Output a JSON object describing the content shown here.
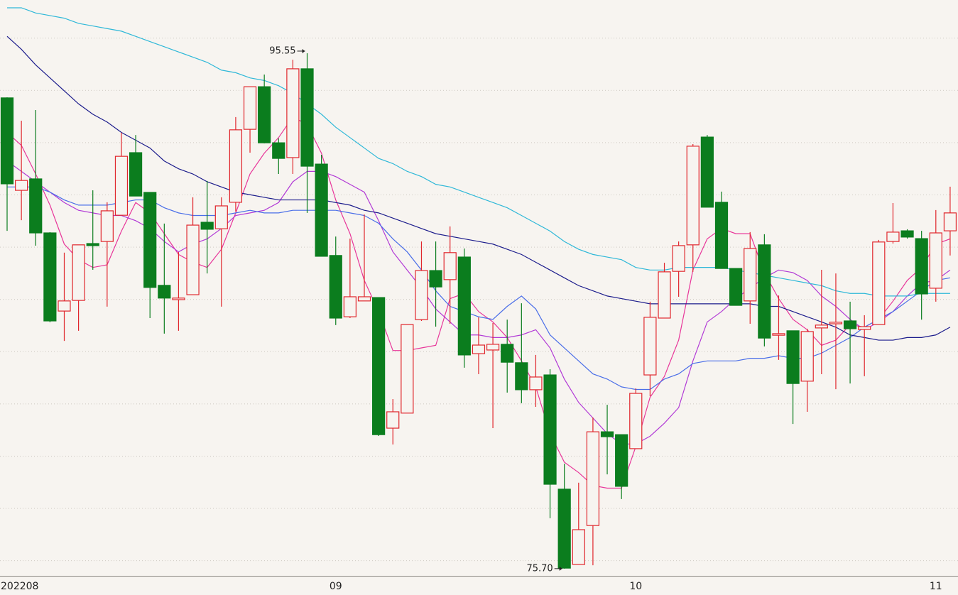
{
  "chart_data": {
    "type": "candlestick",
    "categories": [
      "202208",
      null,
      null,
      null,
      null,
      null,
      null,
      null,
      null,
      null,
      null,
      null,
      null,
      null,
      null,
      null,
      null,
      null,
      null,
      null,
      null,
      null,
      null,
      "09",
      null,
      null,
      null,
      null,
      null,
      null,
      null,
      null,
      null,
      null,
      null,
      null,
      null,
      null,
      null,
      null,
      null,
      null,
      null,
      null,
      "10",
      null,
      null,
      null,
      null,
      null,
      null,
      null,
      null,
      null,
      null,
      null,
      null,
      null,
      null,
      null,
      null,
      null,
      null,
      null,
      null,
      "11",
      null
    ],
    "open": [
      93.83,
      90.27,
      90.71,
      88.63,
      85.62,
      86.03,
      88.22,
      88.3,
      89.31,
      91.72,
      90.19,
      86.61,
      86.06,
      86.25,
      89.04,
      88.79,
      89.81,
      92.62,
      94.26,
      92.1,
      91.53,
      94.95,
      91.28,
      87.76,
      85.4,
      86.01,
      86.14,
      81.11,
      81.69,
      85.29,
      87.18,
      86.83,
      87.7,
      83.98,
      84.12,
      84.34,
      83.63,
      82.59,
      83.16,
      78.76,
      75.86,
      77.36,
      80.97,
      80.86,
      80.32,
      83.16,
      85.35,
      87.15,
      88.17,
      92.32,
      89.81,
      87.26,
      86.01,
      88.17,
      84.69,
      84.86,
      82.92,
      84.97,
      85.13,
      85.24,
      84.91,
      85.1,
      88.3,
      88.71,
      88.41,
      86.5,
      88.71
    ],
    "high": [
      93.85,
      92.95,
      93.36,
      88.66,
      87.87,
      88.17,
      90.27,
      89.81,
      92.49,
      92.4,
      90.19,
      88.99,
      87.89,
      90.0,
      90.63,
      90.0,
      93.09,
      94.26,
      94.73,
      92.27,
      95.3,
      95.55,
      91.64,
      88.49,
      88.41,
      89.34,
      86.14,
      82.23,
      85.1,
      88.3,
      88.3,
      88.88,
      88.03,
      85.38,
      85.16,
      85.29,
      85.92,
      83.93,
      83.38,
      79.74,
      79.01,
      81.52,
      82.01,
      80.86,
      82.64,
      85.98,
      87.48,
      88.3,
      92.05,
      92.4,
      90.22,
      87.26,
      88.66,
      88.58,
      86.22,
      84.86,
      84.94,
      87.21,
      87.07,
      85.98,
      85.46,
      88.36,
      89.78,
      88.77,
      88.71,
      89.51,
      90.41
    ],
    "low": [
      88.71,
      89.12,
      88.14,
      85.19,
      84.47,
      84.86,
      87.21,
      85.79,
      89.31,
      90.05,
      85.35,
      84.75,
      84.86,
      86.25,
      87.07,
      85.79,
      89.45,
      91.72,
      92.08,
      90.9,
      90.9,
      89.4,
      87.73,
      85.08,
      85.35,
      86.01,
      80.81,
      80.48,
      81.69,
      85.24,
      85.02,
      85.13,
      83.44,
      83.19,
      81.11,
      82.48,
      82.07,
      81.93,
      77.64,
      75.7,
      75.86,
      75.83,
      79.33,
      78.38,
      80.32,
      82.34,
      85.35,
      86.17,
      87.13,
      89.62,
      87.26,
      85.84,
      85.13,
      84.26,
      83.74,
      81.27,
      81.74,
      83.19,
      82.61,
      82.83,
      83.11,
      85.1,
      88.22,
      88.41,
      85.29,
      85.98,
      87.76
    ],
    "close": [
      90.52,
      90.65,
      88.63,
      85.24,
      86.01,
      88.17,
      88.14,
      89.48,
      91.58,
      90.05,
      86.53,
      86.12,
      86.12,
      88.93,
      88.77,
      89.67,
      92.6,
      94.26,
      92.1,
      91.5,
      94.95,
      91.2,
      87.73,
      85.35,
      86.17,
      86.17,
      80.86,
      81.74,
      85.1,
      87.18,
      86.55,
      87.87,
      83.93,
      84.31,
      84.34,
      83.65,
      82.59,
      83.08,
      78.95,
      75.72,
      77.2,
      80.97,
      80.78,
      78.87,
      82.45,
      85.38,
      87.13,
      88.14,
      91.97,
      89.62,
      87.26,
      85.84,
      88.03,
      84.58,
      84.75,
      82.83,
      84.83,
      85.08,
      85.19,
      84.94,
      85.02,
      88.28,
      88.66,
      88.47,
      86.28,
      88.63,
      89.4
    ],
    "high_labels": [
      null,
      null,
      null,
      null,
      null,
      null,
      null,
      null,
      null,
      null,
      null,
      null,
      null,
      null,
      null,
      null,
      null,
      null,
      null,
      null,
      null,
      "95.55",
      null,
      null,
      null,
      null,
      null,
      null,
      null,
      null,
      null,
      null,
      null,
      null,
      null,
      null,
      null,
      null,
      null,
      null,
      null,
      null,
      null,
      null,
      null,
      null,
      null,
      null,
      null,
      null,
      null,
      null,
      null,
      null,
      null,
      null,
      null,
      null,
      null,
      null,
      null,
      null,
      null,
      null,
      null,
      null,
      null
    ],
    "low_labels": [
      null,
      null,
      null,
      null,
      null,
      null,
      null,
      null,
      null,
      null,
      null,
      null,
      null,
      null,
      null,
      null,
      null,
      null,
      null,
      null,
      null,
      null,
      null,
      null,
      null,
      null,
      null,
      null,
      null,
      null,
      null,
      null,
      null,
      null,
      null,
      null,
      null,
      null,
      null,
      "75.70",
      null,
      null,
      null,
      null,
      null,
      null,
      null,
      null,
      null,
      null,
      null,
      null,
      null,
      null,
      null,
      null,
      null,
      null,
      null,
      null,
      null,
      null,
      null,
      null,
      null,
      null,
      null
    ],
    "up_color": "#e0262c",
    "down_color": "#0b7d1e",
    "lines": [
      {
        "color": "#e8369a",
        "values": [
          92.5,
          92.0,
          90.9,
          89.7,
          88.2,
          87.6,
          87.3,
          87.4,
          88.7,
          89.8,
          89.4,
          88.6,
          87.8,
          87.5,
          87.3,
          88.0,
          89.4,
          90.9,
          91.7,
          92.3,
          93.1,
          92.8,
          91.7,
          89.9,
          88.6,
          86.8,
          85.6,
          84.1,
          84.1,
          84.2,
          84.3,
          86.1,
          86.3,
          85.6,
          85.2,
          84.6,
          83.7,
          82.7,
          80.9,
          79.8,
          79.4,
          78.9,
          78.8,
          78.8,
          80.4,
          82.3,
          83.1,
          84.5,
          87.2,
          88.4,
          88.8,
          88.6,
          88.6,
          87.1,
          86.1,
          85.3,
          84.9,
          84.3,
          84.5,
          85.1,
          85.0,
          85.3,
          86.0,
          86.8,
          87.3,
          88.2,
          88.4
        ]
      },
      {
        "color": "#b23ad6",
        "values": [
          91.4,
          91.0,
          90.6,
          90.2,
          89.8,
          89.5,
          89.4,
          89.3,
          89.3,
          89.1,
          88.8,
          88.3,
          87.9,
          88.2,
          88.4,
          88.8,
          89.3,
          89.4,
          89.5,
          89.8,
          90.6,
          91.0,
          91.0,
          90.8,
          90.5,
          90.2,
          89.1,
          87.9,
          87.2,
          86.5,
          85.7,
          85.2,
          84.7,
          84.7,
          84.6,
          84.6,
          84.7,
          84.9,
          84.2,
          83.0,
          82.1,
          81.5,
          80.9,
          80.5,
          80.5,
          80.8,
          81.3,
          81.9,
          83.7,
          85.2,
          85.6,
          86.1,
          86.5,
          86.9,
          87.2,
          87.1,
          86.8,
          86.2,
          85.8,
          85.3,
          84.9,
          85.2,
          85.6,
          86.2,
          86.7,
          86.8,
          87.2
        ]
      },
      {
        "color": "#4a6ee8",
        "values": [
          90.4,
          90.4,
          90.4,
          90.2,
          89.9,
          89.7,
          89.7,
          89.7,
          89.8,
          89.9,
          89.9,
          89.6,
          89.4,
          89.3,
          89.3,
          89.3,
          89.4,
          89.5,
          89.4,
          89.4,
          89.5,
          89.5,
          89.5,
          89.5,
          89.4,
          89.3,
          89.0,
          88.4,
          87.9,
          87.2,
          86.4,
          85.8,
          85.6,
          85.4,
          85.3,
          85.8,
          86.2,
          85.7,
          84.7,
          84.2,
          83.7,
          83.2,
          83.0,
          82.7,
          82.6,
          82.6,
          83.0,
          83.2,
          83.6,
          83.7,
          83.7,
          83.7,
          83.8,
          83.8,
          83.9,
          83.8,
          83.8,
          84.0,
          84.3,
          84.6,
          85.0,
          85.3,
          85.6,
          86.0,
          86.4,
          86.8,
          86.9
        ]
      },
      {
        "color": "#1c1c8c",
        "values": [
          96.2,
          95.7,
          95.1,
          94.6,
          94.1,
          93.6,
          93.2,
          92.9,
          92.5,
          92.2,
          91.9,
          91.4,
          91.1,
          90.9,
          90.6,
          90.4,
          90.2,
          90.1,
          90.0,
          89.9,
          89.9,
          89.9,
          89.9,
          89.8,
          89.7,
          89.5,
          89.4,
          89.2,
          89.0,
          88.8,
          88.6,
          88.5,
          88.4,
          88.3,
          88.2,
          88.0,
          87.8,
          87.5,
          87.2,
          86.9,
          86.6,
          86.4,
          86.2,
          86.1,
          86.0,
          85.9,
          85.9,
          85.9,
          85.9,
          85.9,
          85.9,
          85.9,
          85.9,
          85.8,
          85.8,
          85.6,
          85.4,
          85.2,
          85.0,
          84.7,
          84.6,
          84.5,
          84.5,
          84.6,
          84.6,
          84.7,
          85.0
        ]
      },
      {
        "color": "#2fb8d8",
        "values": [
          97.3,
          97.3,
          97.1,
          97.0,
          96.9,
          96.7,
          96.6,
          96.5,
          96.4,
          96.2,
          96.0,
          95.8,
          95.6,
          95.4,
          95.2,
          94.9,
          94.8,
          94.6,
          94.5,
          94.3,
          94.0,
          93.6,
          93.2,
          92.7,
          92.3,
          91.9,
          91.5,
          91.3,
          91.0,
          90.8,
          90.5,
          90.4,
          90.2,
          90.0,
          89.8,
          89.6,
          89.3,
          89.0,
          88.7,
          88.3,
          88.0,
          87.8,
          87.7,
          87.6,
          87.3,
          87.2,
          87.2,
          87.3,
          87.3,
          87.3,
          87.3,
          87.2,
          87.1,
          87.0,
          86.9,
          86.8,
          86.7,
          86.6,
          86.4,
          86.3,
          86.3,
          86.2,
          86.2,
          86.2,
          86.3,
          86.3,
          86.3
        ]
      }
    ],
    "ylim": [
      75.45,
      97.6
    ]
  }
}
